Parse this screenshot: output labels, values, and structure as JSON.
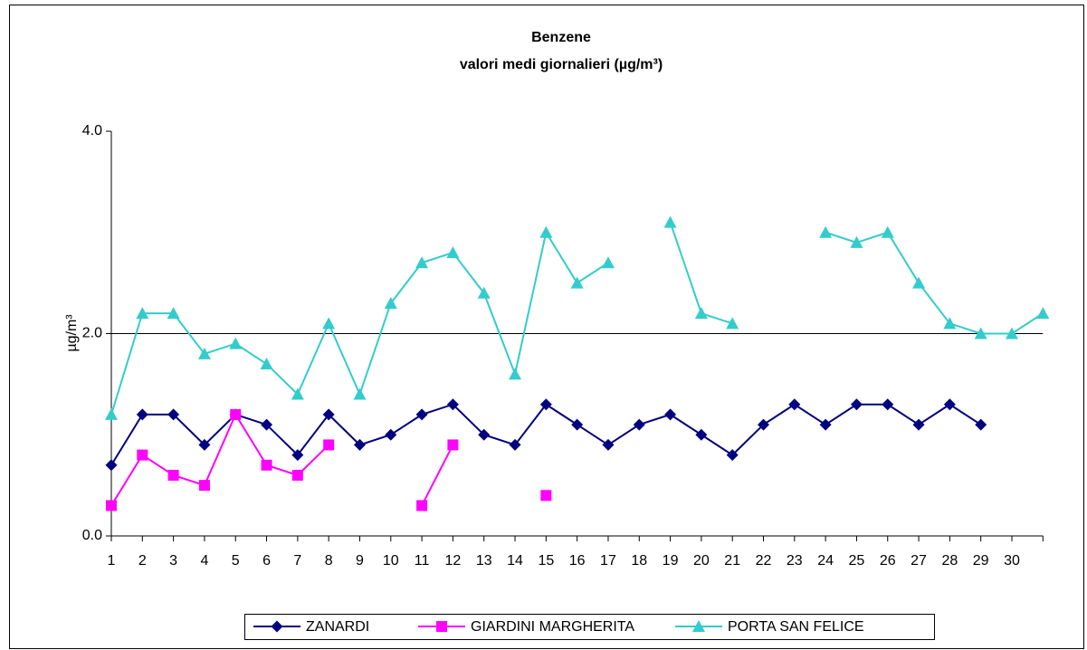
{
  "chart_data": {
    "type": "line",
    "title": "Benzene",
    "subtitle": "valori medi giornalieri (µg/m³)",
    "y_label": "µg/m³",
    "categories": [
      "1",
      "2",
      "3",
      "4",
      "5",
      "6",
      "7",
      "8",
      "9",
      "10",
      "11",
      "12",
      "13",
      "14",
      "15",
      "16",
      "17",
      "18",
      "19",
      "20",
      "21",
      "22",
      "23",
      "24",
      "25",
      "26",
      "27",
      "28",
      "29",
      "30",
      null
    ],
    "ylim": [
      0,
      4
    ],
    "yticks": [
      {
        "value": 0,
        "label": "0.0"
      },
      {
        "value": 2,
        "label": "2.0"
      },
      {
        "value": 4,
        "label": "4.0"
      }
    ],
    "grid": true,
    "legend": "bottom",
    "series": [
      {
        "name": "ZANARDI",
        "color": "#000080",
        "marker": "diamond",
        "values": [
          0.7,
          1.2,
          1.2,
          0.9,
          1.2,
          1.1,
          0.8,
          1.2,
          0.9,
          1.0,
          1.2,
          1.3,
          1.0,
          0.9,
          1.3,
          1.1,
          0.9,
          1.1,
          1.2,
          1.0,
          0.8,
          1.1,
          1.3,
          1.1,
          1.3,
          1.3,
          1.1,
          1.3,
          1.1,
          null,
          null
        ]
      },
      {
        "name": "GIARDINI MARGHERITA",
        "color": "#FF00FF",
        "marker": "square",
        "values": [
          0.3,
          0.8,
          0.6,
          0.5,
          1.2,
          0.7,
          0.6,
          0.9,
          null,
          null,
          0.3,
          0.9,
          null,
          null,
          0.4,
          null,
          null,
          null,
          null,
          null,
          null,
          null,
          null,
          null,
          null,
          null,
          null,
          null,
          null,
          null,
          null
        ]
      },
      {
        "name": "PORTA SAN FELICE",
        "color": "#33CCCC",
        "marker": "triangle",
        "values": [
          1.2,
          2.2,
          2.2,
          1.8,
          1.9,
          1.7,
          1.4,
          2.1,
          1.4,
          2.3,
          2.7,
          2.8,
          2.4,
          1.6,
          3.0,
          2.5,
          2.7,
          null,
          3.1,
          2.2,
          2.1,
          null,
          null,
          3.0,
          2.9,
          3.0,
          2.5,
          2.1,
          2.0,
          2.0,
          2.2
        ]
      }
    ]
  }
}
